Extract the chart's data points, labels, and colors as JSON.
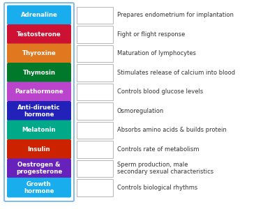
{
  "hormones": [
    {
      "name": "Adrenaline",
      "color": "#1aaded"
    },
    {
      "name": "Testosterone",
      "color": "#cc1133"
    },
    {
      "name": "Thyroxine",
      "color": "#e07820"
    },
    {
      "name": "Thymosin",
      "color": "#007a2a"
    },
    {
      "name": "Parathormone",
      "color": "#bb44cc"
    },
    {
      "name": "Anti-diruetic\nhormone",
      "color": "#2222bb"
    },
    {
      "name": "Melatonin",
      "color": "#00aa88"
    },
    {
      "name": "Insulin",
      "color": "#cc2200"
    },
    {
      "name": "Oestrogen &\nprogesterone",
      "color": "#6622bb"
    },
    {
      "name": "Growth\nhormone",
      "color": "#1aaded"
    }
  ],
  "functions": [
    "Prepares endometrium for implantation",
    "Fight or flight response",
    "Maturation of lymphocytes",
    "Stimulates release of calcium into blood",
    "Controls blood glucose levels",
    "Osmoregulation",
    "Absorbs amino acids & builds protein",
    "Controls rate of metabolism",
    "Sperm production, male\nsecondary sexual characteristics",
    "Controls biological rhythms"
  ],
  "bg_color": "#ffffff",
  "box_border_color": "#bbbbbb",
  "blank_box_color": "#ffffff",
  "text_color_label": "#ffffff",
  "text_color_func": "#333333",
  "outer_border_color": "#88bbdd"
}
